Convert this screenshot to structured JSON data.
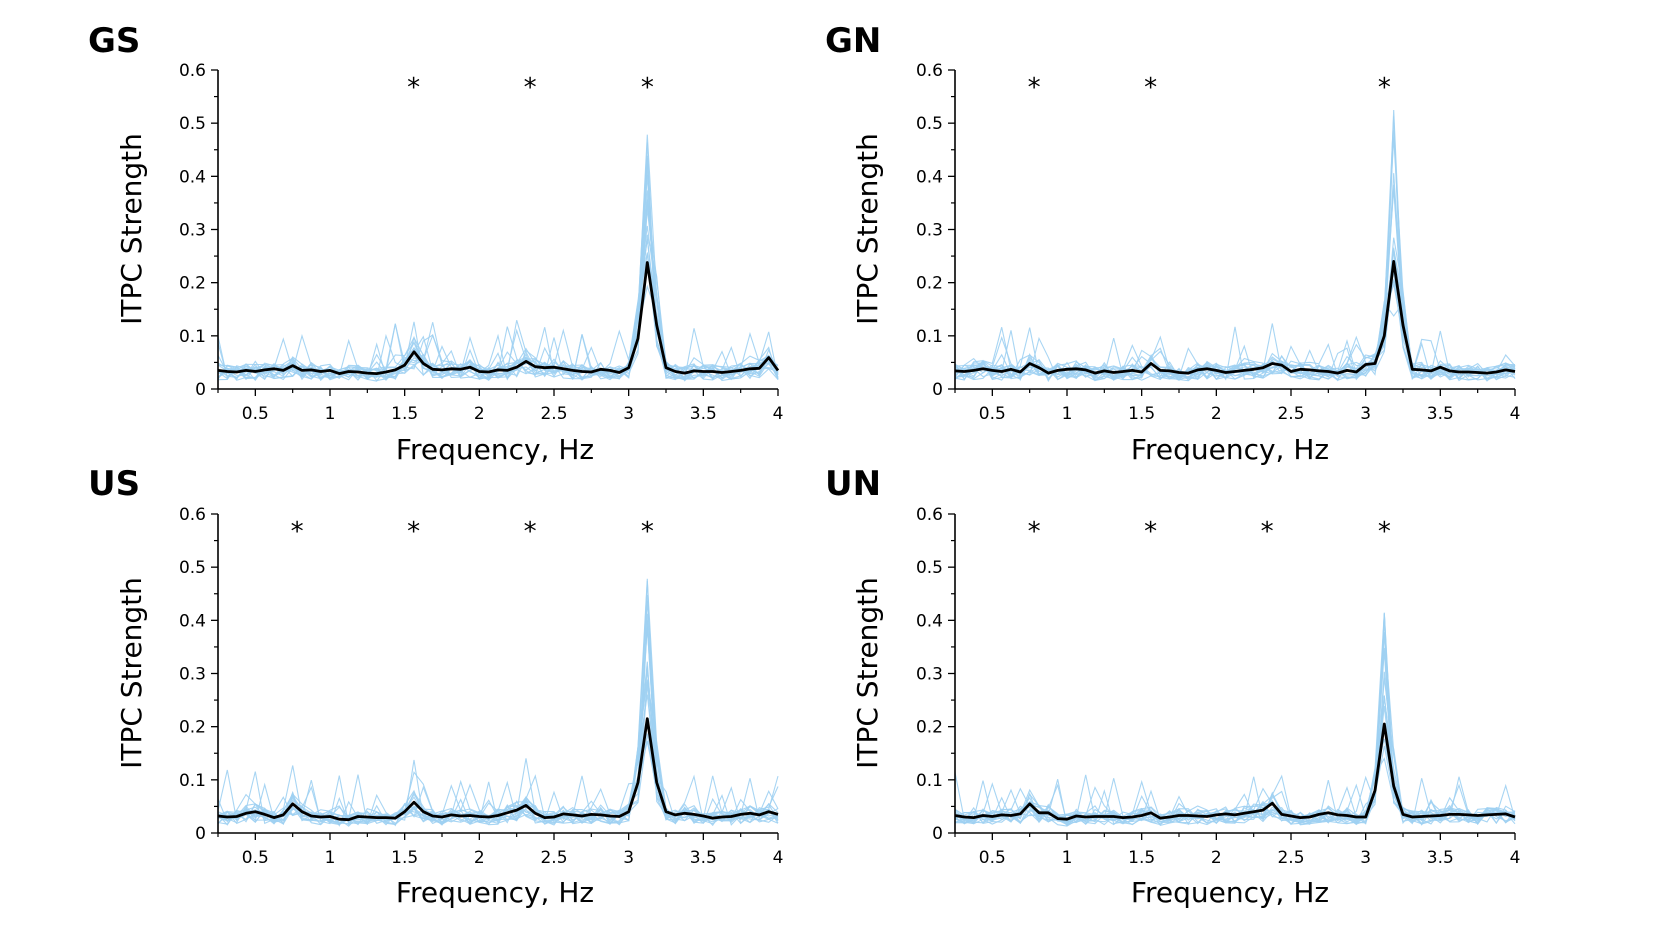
{
  "chart_data": [
    {
      "type": "line",
      "panel": "GS",
      "xlabel": "Frequency, Hz",
      "ylabel": "ITPC Strength",
      "xlim": [
        0.25,
        4
      ],
      "ylim": [
        0,
        0.6
      ],
      "xticks": [
        0.5,
        1,
        1.5,
        2,
        2.5,
        3,
        3.5,
        4
      ],
      "yticks": [
        0,
        0.1,
        0.2,
        0.3,
        0.4,
        0.5,
        0.6
      ],
      "significance_marker": "*",
      "significant_x": [
        1.56,
        2.34,
        3.125
      ],
      "colors": {
        "mean": "#000000",
        "individual": "#9ed0f2"
      },
      "series": [
        {
          "role": "mean",
          "x": [
            0.25,
            0.3125,
            0.375,
            0.4375,
            0.5,
            0.5625,
            0.625,
            0.6875,
            0.75,
            0.8125,
            0.875,
            0.9375,
            1,
            1.0625,
            1.125,
            1.1875,
            1.25,
            1.3125,
            1.375,
            1.4375,
            1.5,
            1.5625,
            1.625,
            1.6875,
            1.75,
            1.8125,
            1.875,
            1.9375,
            2,
            2.0625,
            2.125,
            2.1875,
            2.25,
            2.3125,
            2.375,
            2.4375,
            2.5,
            2.5625,
            2.625,
            2.6875,
            2.75,
            2.8125,
            2.875,
            2.9375,
            3,
            3.0625,
            3.125,
            3.1875,
            3.25,
            3.3125,
            3.375,
            3.4375,
            3.5,
            3.5625,
            3.625,
            3.6875,
            3.75,
            3.8125,
            3.875,
            3.9375,
            4
          ],
          "y": [
            0.035,
            0.033,
            0.032,
            0.035,
            0.033,
            0.036,
            0.038,
            0.035,
            0.044,
            0.035,
            0.036,
            0.033,
            0.035,
            0.029,
            0.033,
            0.032,
            0.03,
            0.029,
            0.032,
            0.036,
            0.045,
            0.07,
            0.048,
            0.037,
            0.036,
            0.038,
            0.037,
            0.041,
            0.033,
            0.032,
            0.036,
            0.035,
            0.041,
            0.052,
            0.042,
            0.04,
            0.041,
            0.038,
            0.035,
            0.033,
            0.032,
            0.037,
            0.035,
            0.031,
            0.04,
            0.095,
            0.238,
            0.12,
            0.04,
            0.033,
            0.03,
            0.034,
            0.033,
            0.033,
            0.031,
            0.033,
            0.035,
            0.038,
            0.039,
            0.059,
            0.035
          ]
        }
      ]
    },
    {
      "type": "line",
      "panel": "GN",
      "xlabel": "Frequency, Hz",
      "ylabel": "ITPC Strength",
      "xlim": [
        0.25,
        4
      ],
      "ylim": [
        0,
        0.6
      ],
      "xticks": [
        0.5,
        1,
        1.5,
        2,
        2.5,
        3,
        3.5,
        4
      ],
      "yticks": [
        0,
        0.1,
        0.2,
        0.3,
        0.4,
        0.5,
        0.6
      ],
      "significance_marker": "*",
      "significant_x": [
        0.78,
        1.56,
        3.125
      ],
      "colors": {
        "mean": "#000000",
        "individual": "#9ed0f2"
      },
      "series": [
        {
          "role": "mean",
          "x": [
            0.25,
            0.3125,
            0.375,
            0.4375,
            0.5,
            0.5625,
            0.625,
            0.6875,
            0.75,
            0.8125,
            0.875,
            0.9375,
            1,
            1.0625,
            1.125,
            1.1875,
            1.25,
            1.3125,
            1.375,
            1.4375,
            1.5,
            1.5625,
            1.625,
            1.6875,
            1.75,
            1.8125,
            1.875,
            1.9375,
            2,
            2.0625,
            2.125,
            2.1875,
            2.25,
            2.3125,
            2.375,
            2.4375,
            2.5,
            2.5625,
            2.625,
            2.6875,
            2.75,
            2.8125,
            2.875,
            2.9375,
            3,
            3.0625,
            3.125,
            3.1875,
            3.25,
            3.3125,
            3.375,
            3.4375,
            3.5,
            3.5625,
            3.625,
            3.6875,
            3.75,
            3.8125,
            3.875,
            3.9375,
            4
          ],
          "y": [
            0.034,
            0.033,
            0.035,
            0.038,
            0.035,
            0.033,
            0.037,
            0.032,
            0.048,
            0.04,
            0.03,
            0.035,
            0.037,
            0.038,
            0.036,
            0.03,
            0.034,
            0.031,
            0.033,
            0.035,
            0.032,
            0.048,
            0.035,
            0.034,
            0.031,
            0.03,
            0.036,
            0.038,
            0.035,
            0.031,
            0.033,
            0.035,
            0.037,
            0.04,
            0.048,
            0.045,
            0.033,
            0.037,
            0.036,
            0.034,
            0.033,
            0.03,
            0.035,
            0.032,
            0.046,
            0.048,
            0.1,
            0.24,
            0.12,
            0.037,
            0.036,
            0.034,
            0.041,
            0.034,
            0.032,
            0.032,
            0.031,
            0.03,
            0.032,
            0.036,
            0.033
          ]
        }
      ]
    },
    {
      "type": "line",
      "panel": "US",
      "xlabel": "Frequency, Hz",
      "ylabel": "ITPC Strength",
      "xlim": [
        0.25,
        4
      ],
      "ylim": [
        0,
        0.6
      ],
      "xticks": [
        0.5,
        1,
        1.5,
        2,
        2.5,
        3,
        3.5,
        4
      ],
      "yticks": [
        0,
        0.1,
        0.2,
        0.3,
        0.4,
        0.5,
        0.6
      ],
      "significance_marker": "*",
      "significant_x": [
        0.78,
        1.56,
        2.34,
        3.125
      ],
      "colors": {
        "mean": "#000000",
        "individual": "#9ed0f2"
      },
      "series": [
        {
          "role": "mean",
          "x": [
            0.25,
            0.3125,
            0.375,
            0.4375,
            0.5,
            0.5625,
            0.625,
            0.6875,
            0.75,
            0.8125,
            0.875,
            0.9375,
            1,
            1.0625,
            1.125,
            1.1875,
            1.25,
            1.3125,
            1.375,
            1.4375,
            1.5,
            1.5625,
            1.625,
            1.6875,
            1.75,
            1.8125,
            1.875,
            1.9375,
            2,
            2.0625,
            2.125,
            2.1875,
            2.25,
            2.3125,
            2.375,
            2.4375,
            2.5,
            2.5625,
            2.625,
            2.6875,
            2.75,
            2.8125,
            2.875,
            2.9375,
            3,
            3.0625,
            3.125,
            3.1875,
            3.25,
            3.3125,
            3.375,
            3.4375,
            3.5,
            3.5625,
            3.625,
            3.6875,
            3.75,
            3.8125,
            3.875,
            3.9375,
            4
          ],
          "y": [
            0.032,
            0.03,
            0.031,
            0.037,
            0.04,
            0.035,
            0.029,
            0.034,
            0.055,
            0.04,
            0.032,
            0.03,
            0.031,
            0.026,
            0.025,
            0.031,
            0.03,
            0.029,
            0.029,
            0.028,
            0.04,
            0.058,
            0.04,
            0.032,
            0.03,
            0.034,
            0.032,
            0.033,
            0.031,
            0.03,
            0.033,
            0.038,
            0.043,
            0.052,
            0.037,
            0.029,
            0.03,
            0.036,
            0.034,
            0.032,
            0.035,
            0.034,
            0.032,
            0.031,
            0.04,
            0.095,
            0.215,
            0.095,
            0.04,
            0.034,
            0.037,
            0.035,
            0.032,
            0.028,
            0.03,
            0.031,
            0.035,
            0.037,
            0.034,
            0.04,
            0.035
          ]
        }
      ]
    },
    {
      "type": "line",
      "panel": "UN",
      "xlabel": "Frequency, Hz",
      "ylabel": "ITPC Strength",
      "xlim": [
        0.25,
        4
      ],
      "ylim": [
        0,
        0.6
      ],
      "xticks": [
        0.5,
        1,
        1.5,
        2,
        2.5,
        3,
        3.5,
        4
      ],
      "yticks": [
        0,
        0.1,
        0.2,
        0.3,
        0.4,
        0.5,
        0.6
      ],
      "significance_marker": "*",
      "significant_x": [
        0.78,
        1.56,
        2.34,
        3.125
      ],
      "colors": {
        "mean": "#000000",
        "individual": "#9ed0f2"
      },
      "series": [
        {
          "role": "mean",
          "x": [
            0.25,
            0.3125,
            0.375,
            0.4375,
            0.5,
            0.5625,
            0.625,
            0.6875,
            0.75,
            0.8125,
            0.875,
            0.9375,
            1,
            1.0625,
            1.125,
            1.1875,
            1.25,
            1.3125,
            1.375,
            1.4375,
            1.5,
            1.5625,
            1.625,
            1.6875,
            1.75,
            1.8125,
            1.875,
            1.9375,
            2,
            2.0625,
            2.125,
            2.1875,
            2.25,
            2.3125,
            2.375,
            2.4375,
            2.5,
            2.5625,
            2.625,
            2.6875,
            2.75,
            2.8125,
            2.875,
            2.9375,
            3,
            3.0625,
            3.125,
            3.1875,
            3.25,
            3.3125,
            3.375,
            3.4375,
            3.5,
            3.5625,
            3.625,
            3.6875,
            3.75,
            3.8125,
            3.875,
            3.9375,
            4
          ],
          "y": [
            0.033,
            0.03,
            0.029,
            0.033,
            0.031,
            0.034,
            0.033,
            0.036,
            0.055,
            0.038,
            0.038,
            0.027,
            0.026,
            0.032,
            0.03,
            0.031,
            0.031,
            0.031,
            0.029,
            0.03,
            0.033,
            0.038,
            0.028,
            0.03,
            0.033,
            0.033,
            0.032,
            0.031,
            0.034,
            0.036,
            0.034,
            0.037,
            0.04,
            0.043,
            0.056,
            0.035,
            0.032,
            0.029,
            0.03,
            0.035,
            0.038,
            0.034,
            0.033,
            0.03,
            0.03,
            0.08,
            0.205,
            0.088,
            0.035,
            0.03,
            0.031,
            0.032,
            0.033,
            0.035,
            0.035,
            0.034,
            0.033,
            0.034,
            0.035,
            0.036,
            0.03
          ]
        }
      ]
    }
  ]
}
